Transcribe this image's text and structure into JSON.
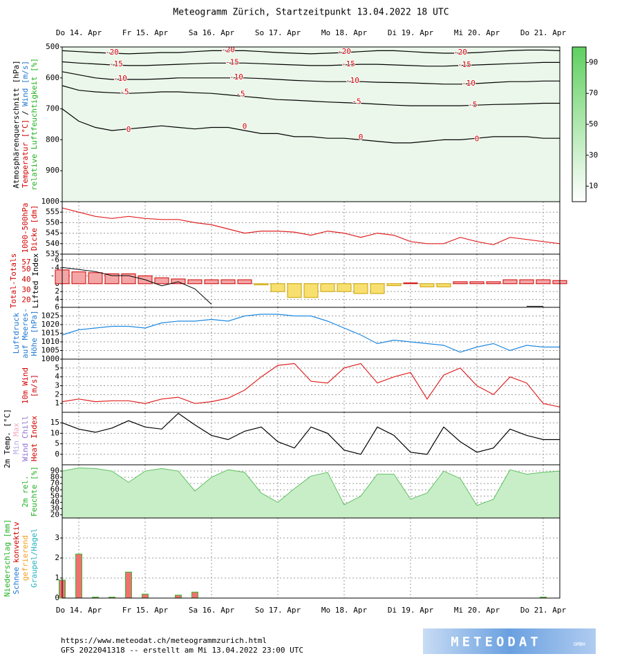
{
  "title": "Meteogramm Zürich, Startzeitpunkt 13.04.2022 18 UTC",
  "categories": [
    null,
    "Do 14. Apr",
    null,
    null,
    null,
    "Fr 15. Apr",
    null,
    null,
    null,
    "Sa 16. Apr",
    null,
    null,
    null,
    "So 17. Apr",
    null,
    null,
    null,
    "Mo 18. Apr",
    null,
    null,
    null,
    "Di 19. Apr",
    null,
    null,
    null,
    "Mi 20. Apr",
    null,
    null,
    null,
    "Do 21. Apr",
    null
  ],
  "chart_data": [
    {
      "type": "contour",
      "grid": false,
      "ylabel": [
        [
          {
            "text": "Atmosphärenquerschnitt [hPa]",
            "color": "#000000"
          }
        ],
        [
          {
            "text": "Temperatur [°C]",
            "color": "#d00000"
          },
          {
            "text": "/",
            "color": "#000000"
          },
          {
            "text": "Wind [m/s]",
            "color": "#1e78d0"
          }
        ],
        [
          {
            "text": "relative Luftfeuchtigkeit [%]",
            "color": "#20b020"
          }
        ]
      ],
      "ylim": [
        1000,
        500
      ],
      "yticks": [
        500,
        600,
        700,
        800,
        900,
        1000
      ],
      "series": [
        {
          "name": "-20",
          "color": "#000000",
          "values": [
            512,
            515,
            518,
            520,
            522,
            520,
            518,
            518,
            515,
            512,
            512,
            512,
            515,
            518,
            520,
            522,
            520,
            518,
            515,
            512,
            512,
            515,
            518,
            520,
            520,
            518,
            515,
            512,
            510,
            510,
            512
          ]
        },
        {
          "name": "-15",
          "color": "#000000",
          "values": [
            548,
            552,
            555,
            558,
            560,
            560,
            558,
            556,
            554,
            552,
            552,
            552,
            554,
            556,
            558,
            560,
            560,
            558,
            556,
            556,
            558,
            560,
            562,
            562,
            560,
            558,
            556,
            554,
            552,
            550,
            550
          ]
        },
        {
          "name": "-10",
          "color": "#000000",
          "values": [
            580,
            590,
            600,
            605,
            605,
            605,
            603,
            600,
            600,
            600,
            600,
            600,
            602,
            605,
            608,
            610,
            612,
            612,
            612,
            614,
            615,
            616,
            618,
            620,
            620,
            618,
            615,
            612,
            612,
            610,
            610
          ]
        },
        {
          "name": "-5",
          "color": "#000000",
          "values": [
            625,
            640,
            645,
            648,
            650,
            648,
            645,
            645,
            648,
            650,
            655,
            660,
            665,
            670,
            672,
            675,
            678,
            680,
            682,
            685,
            688,
            690,
            690,
            690,
            690,
            688,
            686,
            685,
            684,
            682,
            682
          ]
        },
        {
          "name": "0",
          "color": "#000000",
          "values": [
            700,
            740,
            760,
            770,
            765,
            760,
            755,
            760,
            765,
            760,
            760,
            770,
            780,
            780,
            790,
            790,
            795,
            795,
            800,
            805,
            810,
            810,
            805,
            800,
            800,
            795,
            790,
            790,
            790,
            795,
            795
          ]
        }
      ],
      "label_color": "#d00000",
      "colorbar": {
        "lim": [
          0,
          100
        ],
        "ticks": [
          10,
          30,
          50,
          70,
          90
        ],
        "color": "#5fd05f"
      }
    },
    {
      "type": "line",
      "grid": true,
      "ylabel": [
        [
          {
            "text": "1000-500hPa",
            "color": "#d00000"
          }
        ],
        [
          {
            "text": "Dicke [dm]",
            "color": "#d00000"
          }
        ]
      ],
      "ylim": [
        535,
        560
      ],
      "yticks": [
        535,
        540,
        545,
        550,
        555
      ],
      "series": [
        {
          "color": "#e02020",
          "values": [
            557,
            555,
            553,
            552,
            553,
            552,
            551.5,
            551.5,
            550,
            549,
            547,
            545,
            546,
            546,
            545.5,
            544,
            546,
            545,
            543,
            545,
            544,
            541,
            540,
            540,
            543,
            541,
            539.5,
            543,
            542,
            541,
            540
          ]
        }
      ]
    },
    {
      "type": "bar",
      "grid": true,
      "ylabel": [
        [
          {
            "text": "Total-Totals",
            "color": "#d00000"
          }
        ],
        [
          {
            "text": "Lifted Index",
            "color": "#000000"
          }
        ]
      ],
      "ylim": [
        6,
        -7.5
      ],
      "yticks": [
        -6,
        -4,
        -2,
        0,
        2,
        4,
        6
      ],
      "y2lim": [
        13,
        65
      ],
      "y2ticks": [
        20,
        30,
        40,
        50,
        57
      ],
      "y2color": "#d00000",
      "series": [
        {
          "colors": {
            "negative": "#f4a6a6",
            "positive": "#f8e070"
          },
          "stroke": {
            "negative": "#d00000",
            "positive": "#c8a000"
          },
          "values": [
            -3.5,
            -3,
            -2.8,
            -2.5,
            -2.5,
            -2,
            -1.5,
            -1.2,
            -1,
            -1,
            -1,
            -1,
            0.3,
            2,
            3.5,
            3.5,
            2,
            2,
            2.5,
            2.5,
            0.5,
            -0.2,
            0.8,
            0.8,
            -0.5,
            -0.5,
            -0.5,
            -1,
            -1,
            -1,
            -0.8
          ]
        },
        {
          "axis": "y2",
          "color": "#000000",
          "values": [
            52,
            50,
            48,
            44,
            44,
            40,
            34,
            38,
            31,
            16,
            null,
            null,
            null,
            null,
            null,
            null,
            null,
            null,
            null,
            null,
            null,
            null,
            null,
            null,
            null,
            null,
            null,
            null,
            14,
            14,
            null
          ]
        }
      ]
    },
    {
      "type": "line",
      "grid": true,
      "ylabel": [
        [
          {
            "text": "Luftdruck",
            "color": "#1e78d0"
          }
        ],
        [
          {
            "text": "auf Meeres-",
            "color": "#1e78d0"
          }
        ],
        [
          {
            "text": "Höhe [hPa]",
            "color": "#1e78d0"
          }
        ]
      ],
      "ylim": [
        1000,
        1030
      ],
      "yticks": [
        1000,
        1005,
        1010,
        1015,
        1020,
        1025
      ],
      "series": [
        {
          "color": "#1e88e0",
          "values": [
            1014,
            1017,
            1018,
            1019,
            1019,
            1018,
            1021,
            1022,
            1022,
            1023,
            1022,
            1025,
            1026,
            1026,
            1025,
            1025,
            1022,
            1018,
            1014,
            1009,
            1011,
            1010,
            1009,
            1008,
            1004,
            1007,
            1009,
            1005,
            1008,
            1007,
            1007
          ]
        }
      ]
    },
    {
      "type": "line",
      "grid": true,
      "ylabel": [
        [
          {
            "text": "10m Wind",
            "color": "#d00000"
          }
        ],
        [
          {
            "text": "[m/s]",
            "color": "#d00000"
          }
        ]
      ],
      "ylim": [
        0,
        6
      ],
      "yticks": [
        1,
        2,
        3,
        4,
        5
      ],
      "series": [
        {
          "color": "#e02020",
          "values": [
            1.2,
            1.5,
            1.2,
            1.3,
            1.3,
            1.0,
            1.5,
            1.7,
            1.0,
            1.2,
            1.6,
            2.5,
            4,
            5.3,
            5.5,
            3.5,
            3.3,
            5,
            5.5,
            3.3,
            4,
            4.5,
            1.5,
            4.2,
            5,
            3,
            2,
            4,
            3.3,
            1,
            0.6
          ]
        }
      ]
    },
    {
      "type": "line",
      "grid": true,
      "ylabel": [
        [
          {
            "text": "2m Temp. [°C]",
            "color": "#000000"
          }
        ],
        [
          {
            "text": "Min",
            "color": "#b8a8e8"
          },
          {
            "text": "Max",
            "color": "#f0a8c8"
          }
        ],
        [
          {
            "text": "Wind Chill",
            "color": "#9070d0"
          }
        ],
        [
          {
            "text": "Heat Index",
            "color": "#d00000"
          }
        ]
      ],
      "ylim": [
        -5,
        20
      ],
      "yticks": [
        0,
        5,
        10,
        15
      ],
      "series": [
        {
          "color": "#000000",
          "values": [
            15,
            12,
            10.5,
            12.5,
            16,
            13,
            12,
            19.5,
            14,
            9,
            7,
            11,
            13,
            6,
            3,
            13,
            10,
            2,
            0,
            13,
            9,
            1,
            0,
            13,
            6,
            1,
            3,
            12,
            9,
            7,
            7
          ]
        }
      ]
    },
    {
      "type": "area",
      "grid": true,
      "ylabel": [
        [
          {
            "text": "2m rel.",
            "color": "#20b020"
          }
        ],
        [
          {
            "text": "Feuchte [%]",
            "color": "#20b020"
          }
        ]
      ],
      "ylim": [
        15,
        100
      ],
      "yticks": [
        20,
        30,
        40,
        50,
        60,
        70,
        80,
        90
      ],
      "series": [
        {
          "color": "#c8eec8",
          "stroke": "#60c060",
          "values": [
            90,
            95,
            94,
            90,
            72,
            90,
            94,
            90,
            58,
            80,
            92,
            88,
            55,
            40,
            62,
            82,
            88,
            36,
            50,
            85,
            85,
            45,
            55,
            90,
            78,
            35,
            45,
            92,
            85,
            88,
            90
          ]
        }
      ]
    },
    {
      "type": "bar",
      "grid": true,
      "ylabel": [
        [
          {
            "text": "Niederschlag [mm]",
            "color": "#20b020"
          }
        ],
        [
          {
            "text": "Schnee",
            "color": "#1e78d0"
          },
          {
            "text": "konvektiv",
            "color": "#d00000"
          }
        ],
        [
          {
            "text": "gefrierend",
            "color": "#f0a020"
          }
        ],
        [
          {
            "text": "Graupel/Hagel",
            "color": "#20b0c0"
          }
        ]
      ],
      "ylim": [
        0,
        4
      ],
      "yticks": [
        0,
        1,
        2,
        3
      ],
      "series": [
        {
          "colors": {
            "positive": "#f07070",
            "negative": "#f07070"
          },
          "stroke": {
            "positive": "#30c030",
            "negative": "#30c030"
          },
          "values": [
            0.9,
            2.2,
            0.05,
            0.05,
            1.3,
            0.2,
            0,
            0.15,
            0.3,
            0,
            0,
            0,
            0,
            0,
            0,
            0,
            0,
            0,
            0,
            0,
            0,
            0,
            0,
            0,
            0,
            0,
            0,
            0,
            0,
            0.05,
            0
          ]
        }
      ]
    }
  ],
  "footer": {
    "url": "https://www.meteodat.ch/meteogrammzurich.html",
    "run": "GFS 2022041318 -- erstellt am Mi 13.04.2022 23:00 UTC"
  },
  "logo": {
    "name": "METEODAT",
    "suffix": "GMBH"
  }
}
